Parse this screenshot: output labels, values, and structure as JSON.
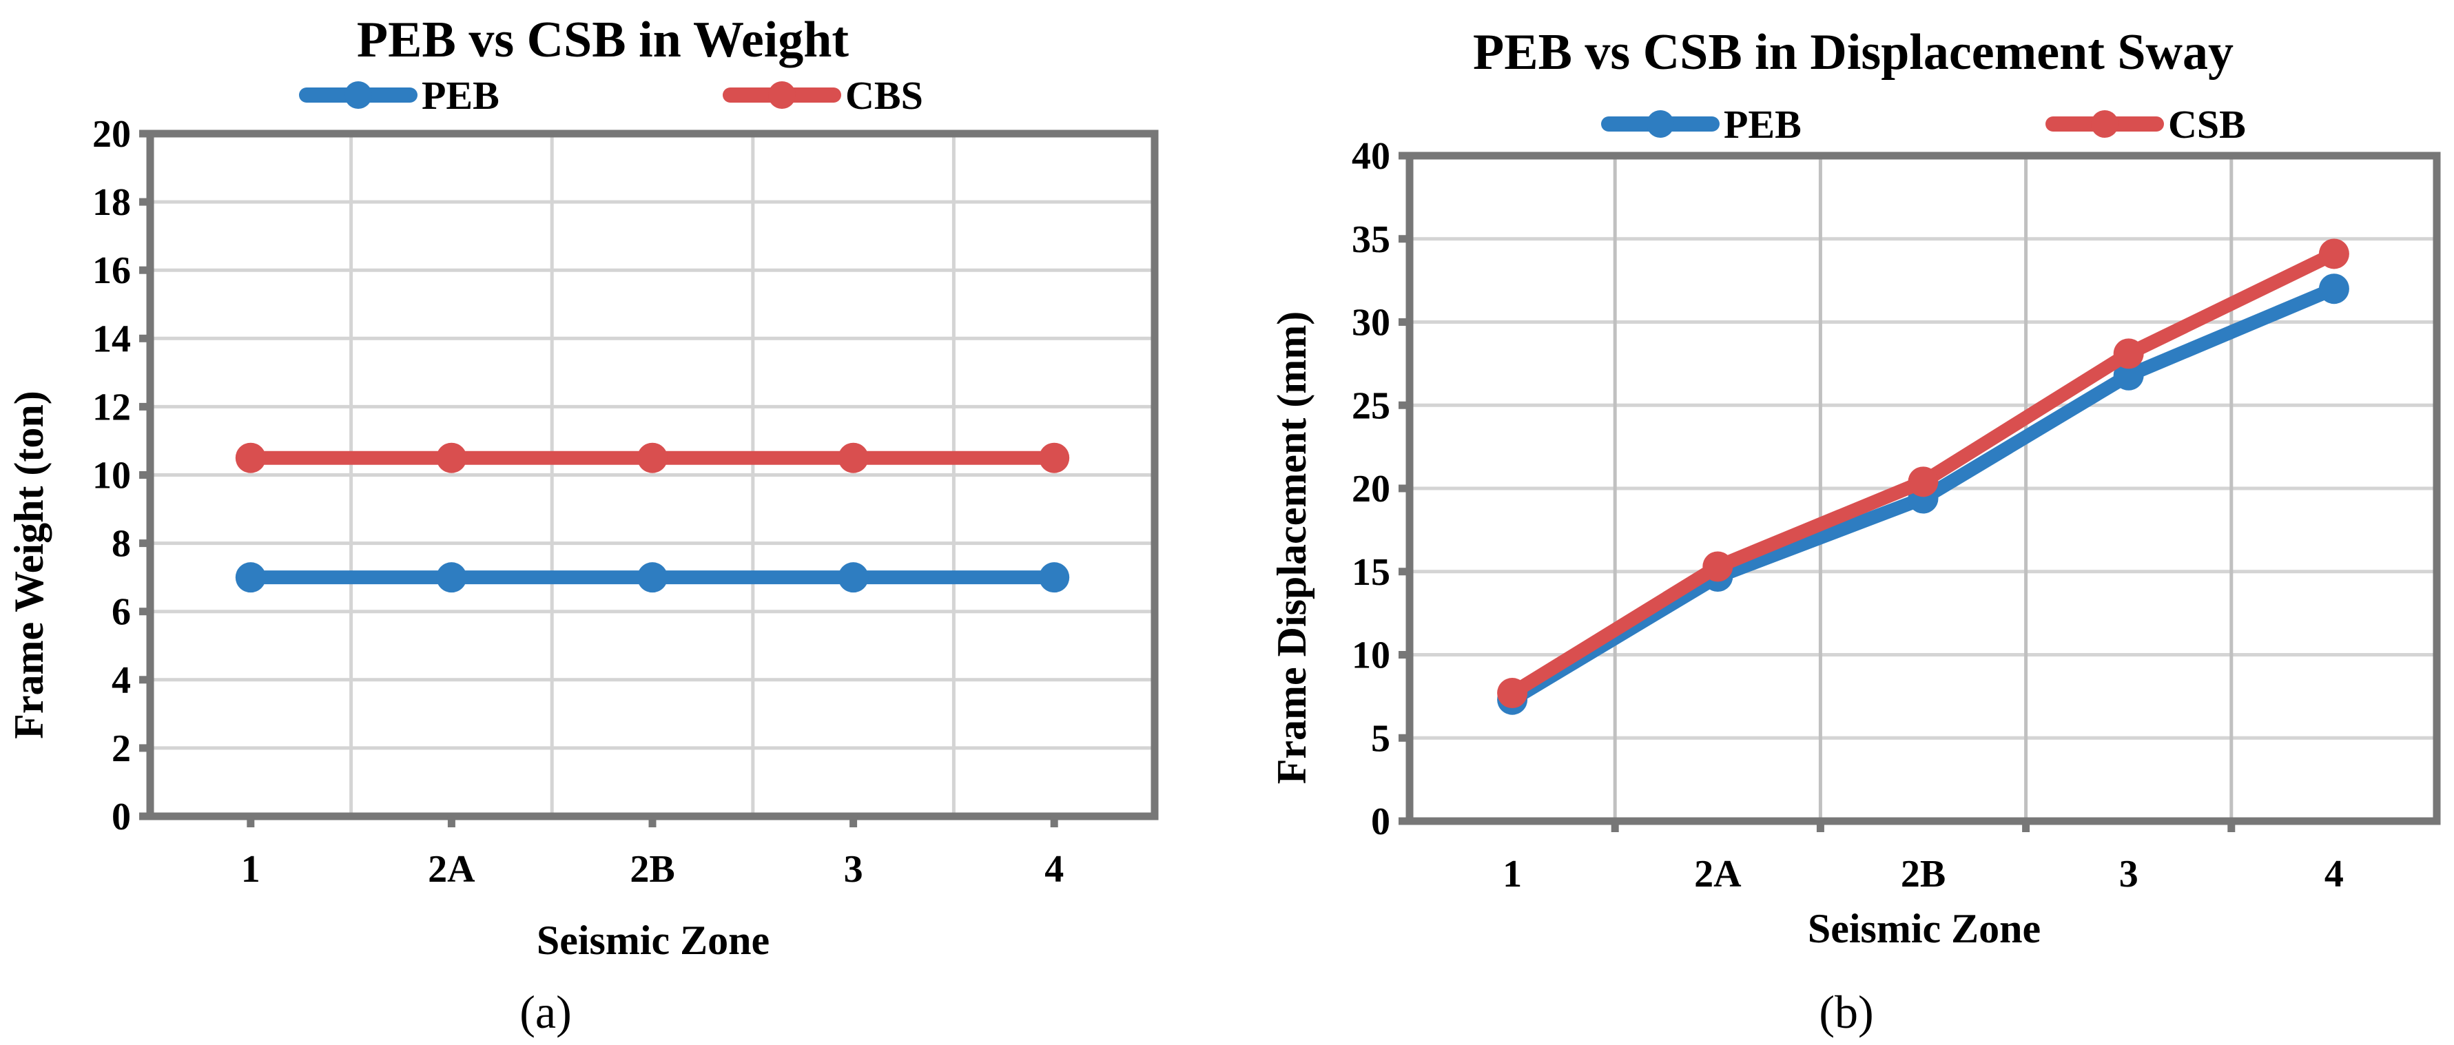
{
  "chart_data": [
    {
      "type": "line",
      "title": "PEB vs CSB in Weight",
      "xlabel": "Seismic Zone",
      "ylabel": "Frame Weight (ton)",
      "caption": "(a)",
      "categories": [
        "1",
        "2A",
        "2B",
        "3",
        "4"
      ],
      "ylim": [
        0,
        20
      ],
      "yticks": [
        "0",
        "2",
        "4",
        "6",
        "8",
        "10",
        "12",
        "14",
        "16",
        "18",
        "20"
      ],
      "grid": true,
      "legend": "top",
      "series": [
        {
          "name": "PEB",
          "color": "#2e7dc1",
          "values": [
            7,
            7,
            7,
            7,
            7
          ]
        },
        {
          "name": "CBS",
          "color": "#d94f4f",
          "values": [
            10.5,
            10.5,
            10.5,
            10.5,
            10.5
          ]
        }
      ]
    },
    {
      "type": "line",
      "title": "PEB vs CSB in Displacement Sway",
      "xlabel": "Seismic Zone",
      "ylabel": "Frame Displacement  (mm)",
      "caption": "(b)",
      "categories": [
        "1",
        "2A",
        "2B",
        "3",
        "4"
      ],
      "ylim": [
        0,
        40
      ],
      "yticks": [
        "0",
        "5",
        "10",
        "15",
        "20",
        "25",
        "30",
        "35",
        "40"
      ],
      "grid": true,
      "legend": "top",
      "series": [
        {
          "name": "PEB",
          "color": "#2e7dc1",
          "values": [
            7.3,
            14.7,
            19.4,
            26.8,
            32.0
          ]
        },
        {
          "name": "CSB",
          "color": "#d94f4f",
          "values": [
            7.7,
            15.3,
            20.4,
            28.1,
            34.1
          ]
        }
      ]
    }
  ]
}
